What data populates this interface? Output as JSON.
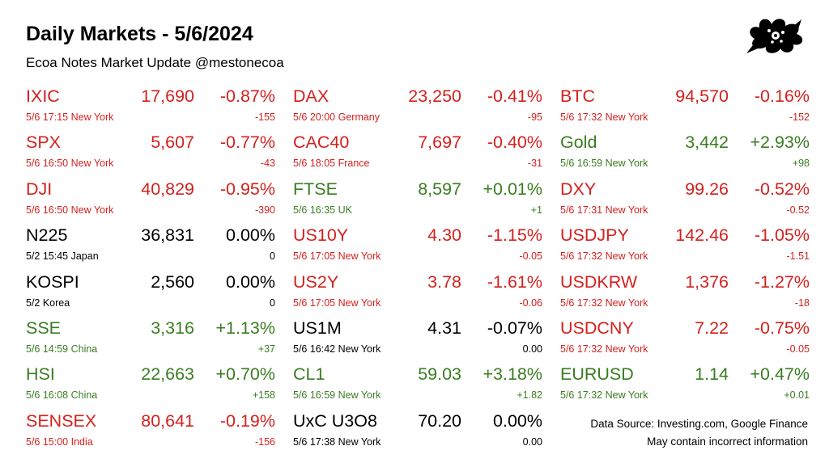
{
  "header": {
    "title": "Daily Markets - 5/6/2024",
    "subtitle": "Ecoa Notes Market Update @mestonecoa",
    "logo_icon": "flower-blob-logo"
  },
  "colors": {
    "up": "#3a7d22",
    "down": "#d3211e",
    "flat": "#000000"
  },
  "columns": [
    [
      {
        "symbol": "IXIC",
        "price": "17,690",
        "change_pct": "-0.87%",
        "time_location": "5/6 17:15 New York",
        "change_abs": "-155",
        "direction": "down"
      },
      {
        "symbol": "SPX",
        "price": "5,607",
        "change_pct": "-0.77%",
        "time_location": "5/6 16:50 New York",
        "change_abs": "-43",
        "direction": "down"
      },
      {
        "symbol": "DJI",
        "price": "40,829",
        "change_pct": "-0.95%",
        "time_location": "5/6 16:50 New York",
        "change_abs": "-390",
        "direction": "down"
      },
      {
        "symbol": "N225",
        "price": "36,831",
        "change_pct": "0.00%",
        "time_location": "5/2 15:45 Japan",
        "change_abs": "0",
        "direction": "flat"
      },
      {
        "symbol": "KOSPI",
        "price": "2,560",
        "change_pct": "0.00%",
        "time_location": "5/2  Korea",
        "change_abs": "0",
        "direction": "flat"
      },
      {
        "symbol": "SSE",
        "price": "3,316",
        "change_pct": "+1.13%",
        "time_location": "5/6 14:59 China",
        "change_abs": "+37",
        "direction": "up"
      },
      {
        "symbol": "HSI",
        "price": "22,663",
        "change_pct": "+0.70%",
        "time_location": "5/6 16:08 China",
        "change_abs": "+158",
        "direction": "up"
      },
      {
        "symbol": "SENSEX",
        "price": "80,641",
        "change_pct": "-0.19%",
        "time_location": "5/6 15:00 India",
        "change_abs": "-156",
        "direction": "down"
      }
    ],
    [
      {
        "symbol": "DAX",
        "price": "23,250",
        "change_pct": "-0.41%",
        "time_location": "5/6 20:00 Germany",
        "change_abs": "-95",
        "direction": "down"
      },
      {
        "symbol": "CAC40",
        "price": "7,697",
        "change_pct": "-0.40%",
        "time_location": "5/6 18:05 France",
        "change_abs": "-31",
        "direction": "down"
      },
      {
        "symbol": "FTSE",
        "price": "8,597",
        "change_pct": "+0.01%",
        "time_location": "5/6 16:35 UK",
        "change_abs": "+1",
        "direction": "up"
      },
      {
        "symbol": "US10Y",
        "price": "4.30",
        "change_pct": "-1.15%",
        "time_location": "5/6 17:05 New York",
        "change_abs": "-0.05",
        "direction": "down"
      },
      {
        "symbol": "US2Y",
        "price": "3.78",
        "change_pct": "-1.61%",
        "time_location": "5/6 17:05 New York",
        "change_abs": "-0.06",
        "direction": "down"
      },
      {
        "symbol": "US1M",
        "price": "4.31",
        "change_pct": "-0.07%",
        "time_location": "5/6 16:42 New York",
        "change_abs": "0.00",
        "direction": "flat"
      },
      {
        "symbol": "CL1",
        "price": "59.03",
        "change_pct": "+3.18%",
        "time_location": "5/6 16:59 New York",
        "change_abs": "+1.82",
        "direction": "up"
      },
      {
        "symbol": "UxC U3O8",
        "price": "70.20",
        "change_pct": "0.00%",
        "time_location": "5/6 17:38 New York",
        "change_abs": "0.00",
        "direction": "flat"
      }
    ],
    [
      {
        "symbol": "BTC",
        "price": "94,570",
        "change_pct": "-0.16%",
        "time_location": "5/6 17:32 New York",
        "change_abs": "-152",
        "direction": "down"
      },
      {
        "symbol": "Gold",
        "price": "3,442",
        "change_pct": "+2.93%",
        "time_location": "5/6 16:59 New York",
        "change_abs": "+98",
        "direction": "up"
      },
      {
        "symbol": "DXY",
        "price": "99.26",
        "change_pct": "-0.52%",
        "time_location": "5/6 17:31 New York",
        "change_abs": "-0.52",
        "direction": "down"
      },
      {
        "symbol": "USDJPY",
        "price": "142.46",
        "change_pct": "-1.05%",
        "time_location": "5/6 17:32 New York",
        "change_abs": "-1.51",
        "direction": "down"
      },
      {
        "symbol": "USDKRW",
        "price": "1,376",
        "change_pct": "-1.27%",
        "time_location": "5/6 17:32 New York",
        "change_abs": "-18",
        "direction": "down"
      },
      {
        "symbol": "USDCNY",
        "price": "7.22",
        "change_pct": "-0.75%",
        "time_location": "5/6 17:32 New York",
        "change_abs": "-0.05",
        "direction": "down"
      },
      {
        "symbol": "EURUSD",
        "price": "1.14",
        "change_pct": "+0.47%",
        "time_location": "5/6 17:32 New York",
        "change_abs": "+0.01",
        "direction": "up"
      }
    ]
  ],
  "footer": {
    "source": "Data Source: Investing.com, Google Finance",
    "disclaimer": "May contain incorrect information"
  }
}
